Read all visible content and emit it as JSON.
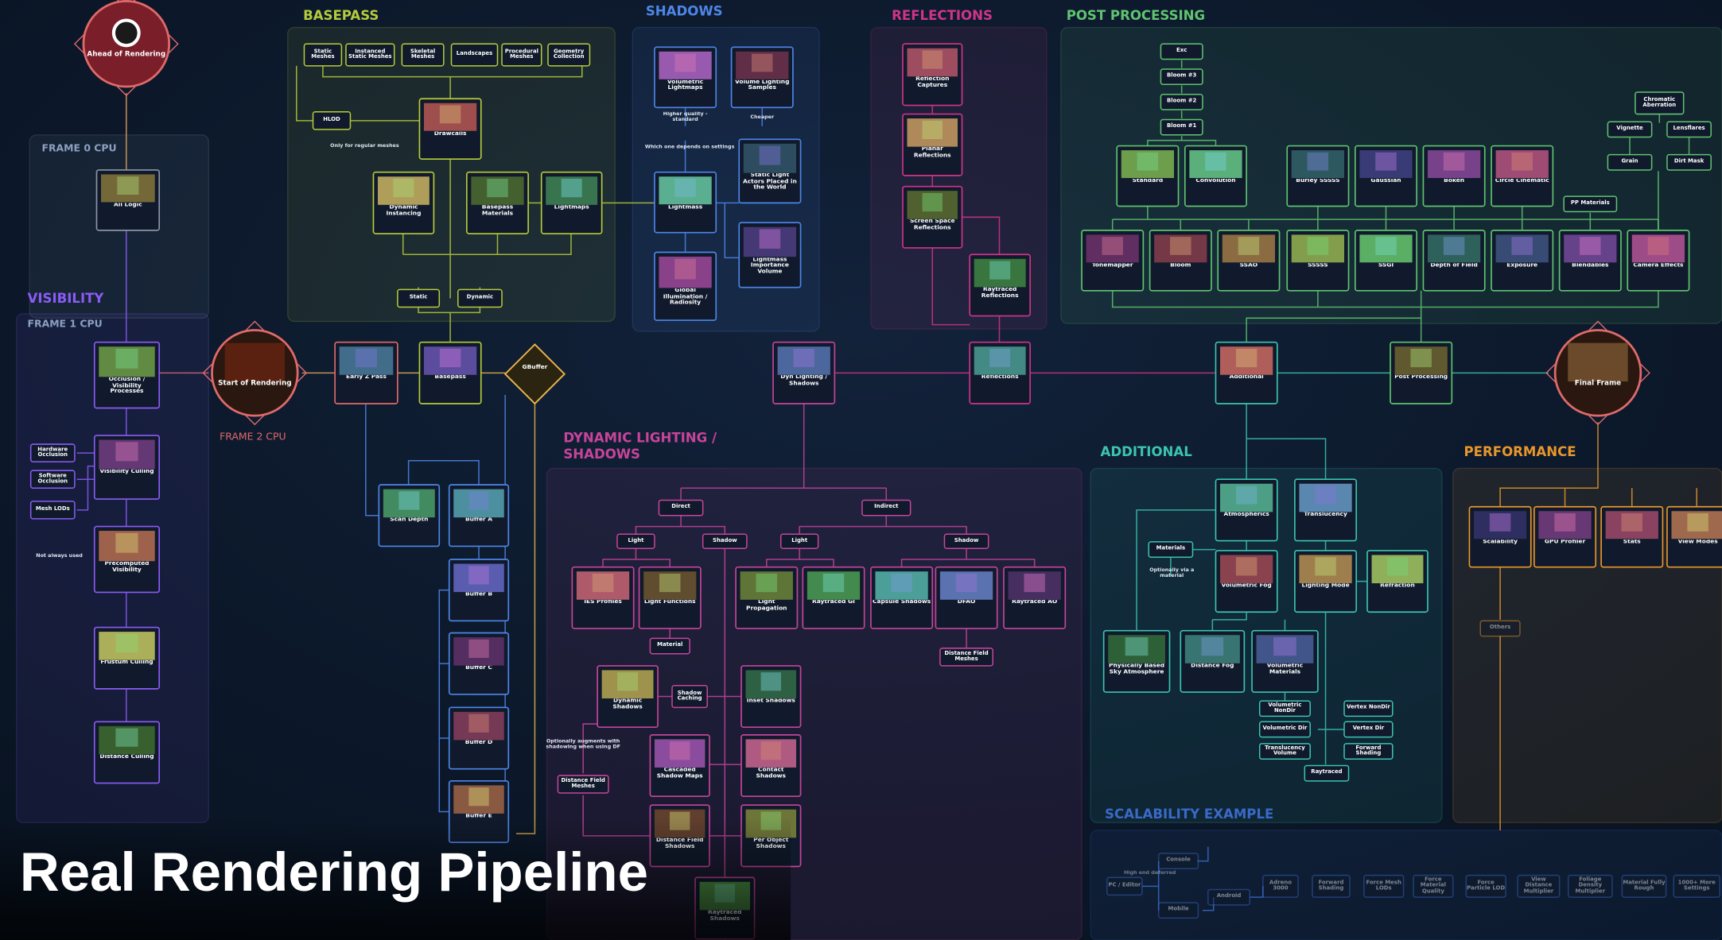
{
  "title": "Real Rendering Pipeline",
  "sections": [
    {
      "title": "BASEPASS"
    },
    {
      "title": "DYNAMIC LIGHTING / SHADOWS"
    },
    {
      "title": "REFLECTIONS"
    },
    {
      "title": "POST PROCESSING"
    },
    {
      "title": "FRAME 0 CPU"
    },
    {
      "title": "VISIBILITY"
    },
    {
      "title": "FRAME 1 CPU"
    },
    {
      "title": "FRAME 2 CPU"
    },
    {
      "title": "DYNAMIC LIGHTING / SHADOWS"
    },
    {
      "title": "ADDITIONAL"
    },
    {
      "title": "PERFORMANCE"
    },
    {
      "title": "SCALABILITY EXAMPLE"
    }
  ],
  "nodes": [
    {
      "label": "Ahead of Rendering"
    },
    {
      "label": "All Logic"
    },
    {
      "label": "Occlusion / Visibility Processes"
    },
    {
      "label": "Hardware Occlusion"
    },
    {
      "label": "Software Occlusion"
    },
    {
      "label": "Mesh LODs"
    },
    {
      "label": "Visibility Culling"
    },
    {
      "label": "Not always used"
    },
    {
      "label": "Precomputed Visibility"
    },
    {
      "label": "Frustum Culling"
    },
    {
      "label": "Distance Culling"
    },
    {
      "label": "Start of Rendering"
    },
    {
      "label": "Early Z Pass"
    },
    {
      "label": "Basepass"
    },
    {
      "label": "GBuffer"
    },
    {
      "label": "Static Meshes"
    },
    {
      "label": "Instanced Static Meshes"
    },
    {
      "label": "Skeletal Meshes"
    },
    {
      "label": "Landscapes"
    },
    {
      "label": "Procedural Meshes"
    },
    {
      "label": "Geometry Collection"
    },
    {
      "label": "HLOD"
    },
    {
      "label": "Only for regular meshes"
    },
    {
      "label": "Drawcalls"
    },
    {
      "label": "Dynamic Instancing"
    },
    {
      "label": "Basepass Materials"
    },
    {
      "label": "Lightmaps"
    },
    {
      "label": "Static"
    },
    {
      "label": "Dynamic"
    },
    {
      "label": "Volumetric Lightmaps"
    },
    {
      "label": "Volume Lighting Samples"
    },
    {
      "label": "Higher quality - standard"
    },
    {
      "label": "Cheaper"
    },
    {
      "label": "Which one depends on settings"
    },
    {
      "label": "Lightmass"
    },
    {
      "label": "Static Light Actors Placed in the World"
    },
    {
      "label": "Lightmass Importance Volume"
    },
    {
      "label": "Global Illumination / Radiosity"
    },
    {
      "label": "Reflection Captures"
    },
    {
      "label": "Planar Reflections"
    },
    {
      "label": "Screen Space Reflections"
    },
    {
      "label": "Raytraced Reflections"
    },
    {
      "label": "Reflections"
    },
    {
      "label": "Dyn Lighting / Shadows"
    },
    {
      "label": "Exc"
    },
    {
      "label": "Bloom #3"
    },
    {
      "label": "Bloom #2"
    },
    {
      "label": "Bloom #1"
    },
    {
      "label": "Standard"
    },
    {
      "label": "Convolution"
    },
    {
      "label": "Burley SSSSS"
    },
    {
      "label": "Gaussian"
    },
    {
      "label": "Bokeh"
    },
    {
      "label": "Circle Cinematic"
    },
    {
      "label": "Chromatic Aberration"
    },
    {
      "label": "Vignette"
    },
    {
      "label": "Lensflares"
    },
    {
      "label": "Grain"
    },
    {
      "label": "Dirt Mask"
    },
    {
      "label": "PP Materials"
    },
    {
      "label": "Tonemapper"
    },
    {
      "label": "Bloom"
    },
    {
      "label": "SSAO"
    },
    {
      "label": "SSSSS"
    },
    {
      "label": "SSGI"
    },
    {
      "label": "Depth of Field"
    },
    {
      "label": "Exposure"
    },
    {
      "label": "Blendables"
    },
    {
      "label": "Camera Effects"
    },
    {
      "label": "Additional"
    },
    {
      "label": "Post Processing"
    },
    {
      "label": "Final Frame"
    },
    {
      "label": "Scan Depth"
    },
    {
      "label": "Buffer A"
    },
    {
      "label": "Buffer B"
    },
    {
      "label": "Buffer C"
    },
    {
      "label": "Buffer D"
    },
    {
      "label": "Buffer E"
    },
    {
      "label": "Direct"
    },
    {
      "label": "Indirect"
    },
    {
      "label": "Light"
    },
    {
      "label": "Shadow"
    },
    {
      "label": "Light"
    },
    {
      "label": "Shadow"
    },
    {
      "label": "IES Profiles"
    },
    {
      "label": "Light Functions"
    },
    {
      "label": "Light Propagation"
    },
    {
      "label": "Raytraced GI"
    },
    {
      "label": "Capsule Shadows"
    },
    {
      "label": "DFAO"
    },
    {
      "label": "Raytraced AO"
    },
    {
      "label": "Material"
    },
    {
      "label": "Distance Field Meshes"
    },
    {
      "label": "Dynamic Shadows"
    },
    {
      "label": "Shadow Caching"
    },
    {
      "label": "Inset Shadows"
    },
    {
      "label": "Optionally augments with shadowing when using DF"
    },
    {
      "label": "Distance Field Meshes"
    },
    {
      "label": "Cascaded Shadow Maps"
    },
    {
      "label": "Contact Shadows"
    },
    {
      "label": "Distance Field Shadows"
    },
    {
      "label": "Per Object Shadows"
    },
    {
      "label": "Raytraced Shadows"
    },
    {
      "label": "Atmospherics"
    },
    {
      "label": "Translucency"
    },
    {
      "label": "Materials"
    },
    {
      "label": "Optionally via a material"
    },
    {
      "label": "Volumetric Fog"
    },
    {
      "label": "Lighting Mode"
    },
    {
      "label": "Refraction"
    },
    {
      "label": "Physically Based Sky Atmosphere"
    },
    {
      "label": "Distance Fog"
    },
    {
      "label": "Volumetric Materials"
    },
    {
      "label": "Volumetric NonDir"
    },
    {
      "label": "Volumetric Dir"
    },
    {
      "label": "Translucency Volume"
    },
    {
      "label": "Vertex NonDir"
    },
    {
      "label": "Vertex Dir"
    },
    {
      "label": "Forward Shading"
    },
    {
      "label": "Raytraced"
    },
    {
      "label": "Scalability"
    },
    {
      "label": "GPU Profiler"
    },
    {
      "label": "Stats"
    },
    {
      "label": "View Modes"
    },
    {
      "label": "Others"
    },
    {
      "label": "Console"
    },
    {
      "label": "PC / Editor"
    },
    {
      "label": "Mobile"
    },
    {
      "label": "Android"
    },
    {
      "label": "High end deferred"
    },
    {
      "label": "Adreno 3000"
    },
    {
      "label": "Forward Shading"
    },
    {
      "label": "Force Mesh LODs"
    },
    {
      "label": "Force Material Quality"
    },
    {
      "label": "Force Particle LOD"
    },
    {
      "label": "View Distance Multiplier"
    },
    {
      "label": "Foliage Density Multiplier"
    },
    {
      "label": "Material Fully Rough"
    },
    {
      "label": "1000+ More Settings"
    }
  ]
}
